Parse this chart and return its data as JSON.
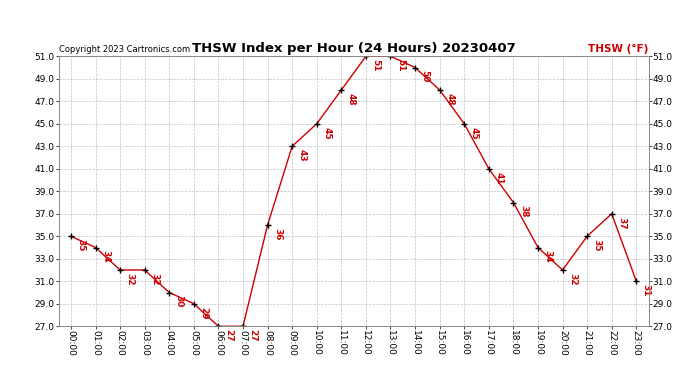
{
  "title": "THSW Index per Hour (24 Hours) 20230407",
  "copyright": "Copyright 2023 Cartronics.com",
  "legend_label": "THSW (°F)",
  "hours": [
    "00:00",
    "01:00",
    "02:00",
    "03:00",
    "04:00",
    "05:00",
    "06:00",
    "07:00",
    "08:00",
    "09:00",
    "10:00",
    "11:00",
    "12:00",
    "13:00",
    "14:00",
    "15:00",
    "16:00",
    "17:00",
    "18:00",
    "19:00",
    "20:00",
    "21:00",
    "22:00",
    "23:00"
  ],
  "values": [
    35,
    34,
    32,
    32,
    30,
    29,
    27,
    27,
    36,
    43,
    45,
    48,
    51,
    51,
    50,
    48,
    45,
    41,
    38,
    34,
    32,
    35,
    37,
    31
  ],
  "ylim": [
    27.0,
    51.0
  ],
  "yticks": [
    27.0,
    29.0,
    31.0,
    33.0,
    35.0,
    37.0,
    39.0,
    41.0,
    43.0,
    45.0,
    47.0,
    49.0,
    51.0
  ],
  "line_color": "#cc0000",
  "marker_color": "#000000",
  "label_color": "#cc0000",
  "background_color": "#ffffff",
  "grid_color": "#c0c0c0",
  "title_color": "#000000",
  "copyright_color": "#000000",
  "legend_color": "#cc0000",
  "title_fontsize": 9.5,
  "tick_fontsize": 6.5,
  "label_fontsize": 6.5,
  "copyright_fontsize": 6.0,
  "legend_fontsize": 7.5
}
